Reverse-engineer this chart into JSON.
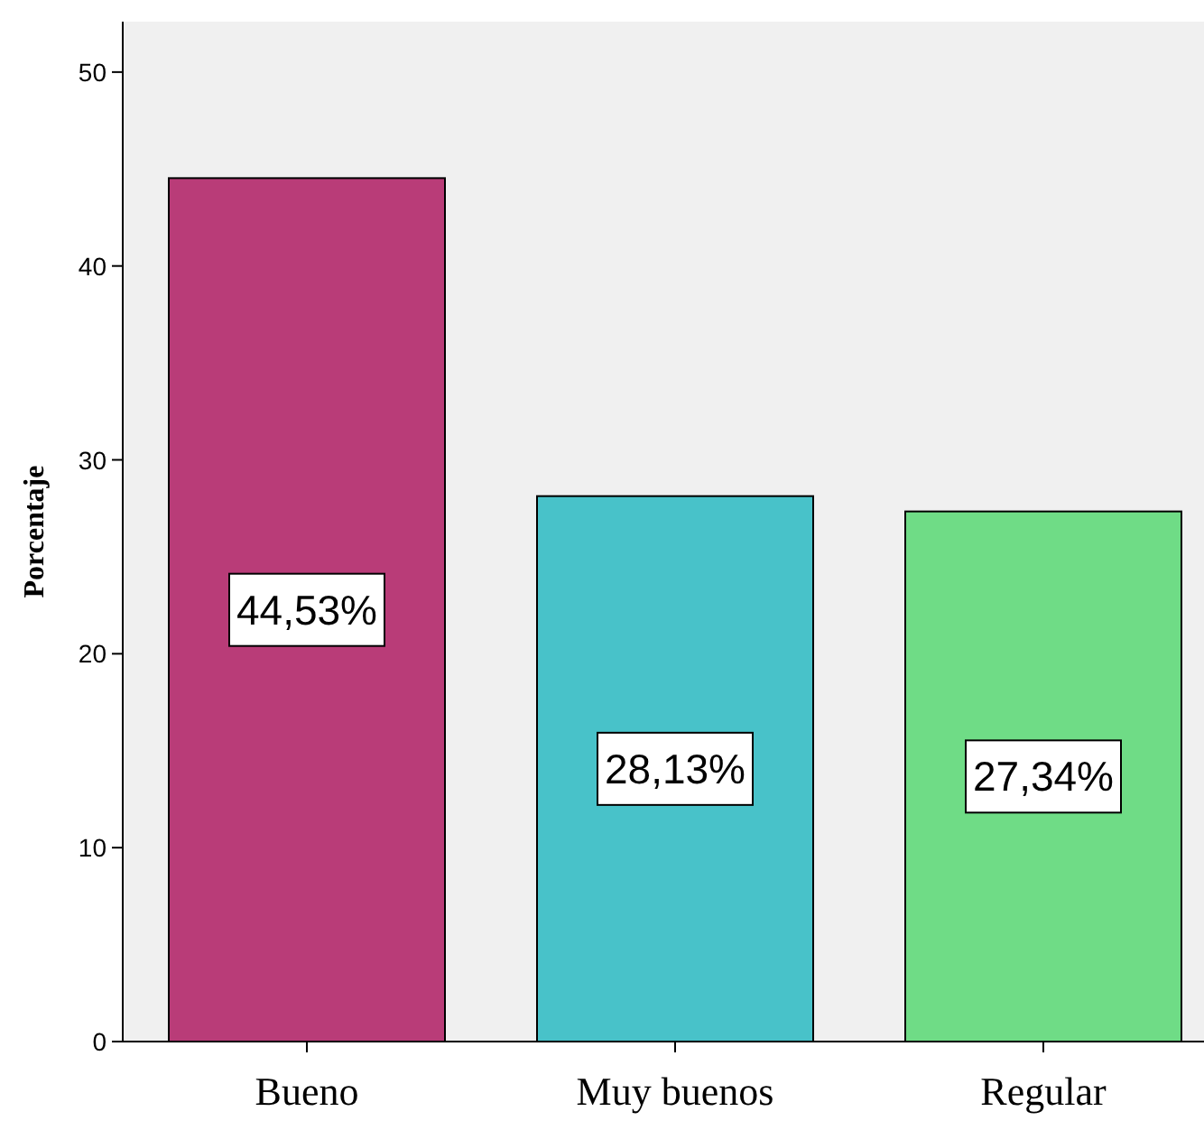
{
  "chart_data": {
    "type": "bar",
    "ylabel": "Porcentaje",
    "categories": [
      "Bueno",
      "Muy buenos",
      "Regular"
    ],
    "values": [
      44.53,
      28.13,
      27.34
    ],
    "colors": [
      "#b93c78",
      "#48c2c9",
      "#6fdc86"
    ],
    "value_labels": [
      "44,53%",
      "28,13%",
      "27,34%"
    ],
    "ylim": [
      0,
      52.6
    ],
    "yticks": [
      0,
      10,
      20,
      30,
      40,
      50
    ],
    "grid": false
  }
}
